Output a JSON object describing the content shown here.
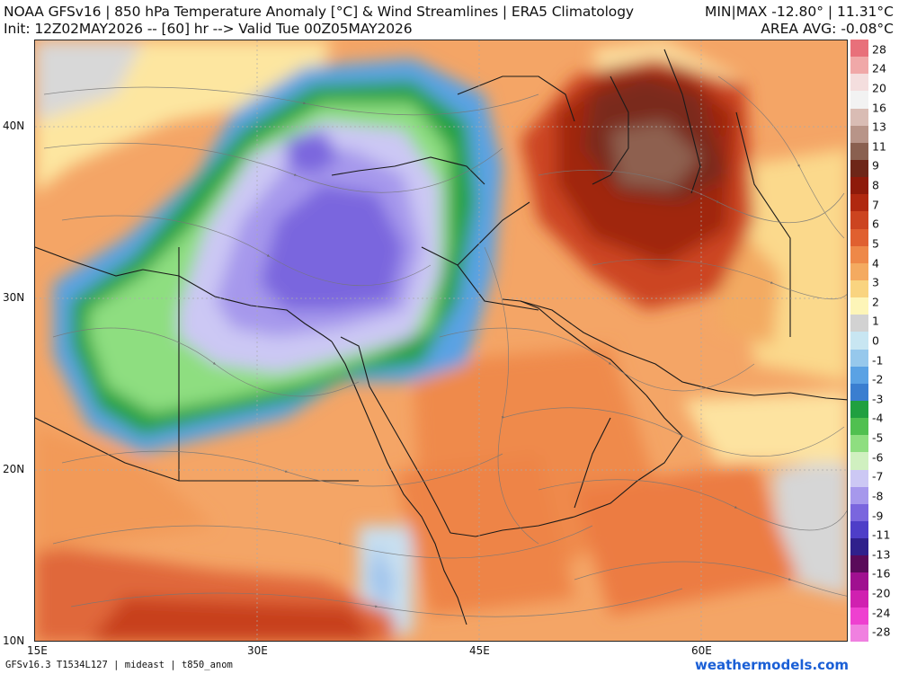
{
  "header": {
    "title": "NOAA GFSv16 | 850 hPa Temperature Anomaly [°C] & Wind Streamlines | ERA5 Climatology",
    "subtitle": "Init: 12Z02MAY2026 -- [60] hr --> Valid Tue 00Z05MAY2026",
    "minmax": "MIN|MAX -12.80° | 11.31°C",
    "area_avg": "AREA AVG: -0.08°C"
  },
  "map": {
    "lat_labels": [
      "40N",
      "30N",
      "20N",
      "10N"
    ],
    "lon_labels": [
      "15E",
      "30E",
      "45E",
      "60E"
    ],
    "lat_values": [
      40,
      30,
      20,
      10
    ],
    "lon_values": [
      15,
      30,
      45,
      60
    ],
    "extent": {
      "lon_min": 15,
      "lon_max": 70,
      "lat_min": 10,
      "lat_max": 45
    }
  },
  "legend": {
    "ticks": [
      "28",
      "24",
      "20",
      "16",
      "13",
      "11",
      "9",
      "8",
      "7",
      "6",
      "5",
      "4",
      "3",
      "2",
      "1",
      "0",
      "-1",
      "-2",
      "-3",
      "-4",
      "-5",
      "-6",
      "-7",
      "-8",
      "-9",
      "-11",
      "-13",
      "-16",
      "-20",
      "-24",
      "-28"
    ],
    "colors": [
      "#e8707a",
      "#f0a8a8",
      "#f4dede",
      "#f2f2f2",
      "#d9bcb4",
      "#b89488",
      "#8a6050",
      "#6e2618",
      "#8e1a0a",
      "#b02810",
      "#cc4420",
      "#e06030",
      "#ee8848",
      "#f4aa60",
      "#f9d480",
      "#fdf5b8",
      "#d2d2d2",
      "#c8e6f2",
      "#96c8ec",
      "#5aa2e4",
      "#3a7ed0",
      "#20a040",
      "#50c050",
      "#8ede80",
      "#d0f0c0",
      "#ccc8f4",
      "#a698ec",
      "#7a66de",
      "#4e3ec8",
      "#30208c",
      "#5a0a5a",
      "#a01090",
      "#d020b0",
      "#ee40d0",
      "#f080e0"
    ]
  },
  "footer": {
    "left": "GFSv16.3 T1534L127 | mideast | t850_anom",
    "right": "weathermodels.com"
  }
}
